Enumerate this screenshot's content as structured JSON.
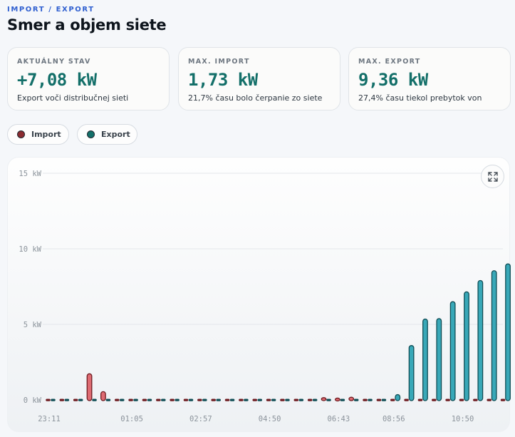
{
  "header": {
    "eyebrow": "IMPORT / EXPORT",
    "title": "Smer a objem siete"
  },
  "cards": [
    {
      "label": "AKTUÁLNY STAV",
      "value": "+7,08 kW",
      "desc": "Export voči distribučnej sieti"
    },
    {
      "label": "MAX. IMPORT",
      "value": "1,73 kW",
      "desc": "21,7% času bolo čerpanie zo siete"
    },
    {
      "label": "MAX. EXPORT",
      "value": "9,36 kW",
      "desc": "27,4% času tiekol prebytok von"
    }
  ],
  "legend": {
    "import_label": "Import",
    "export_label": "Export"
  },
  "icons": {
    "expand": "expand-icon"
  },
  "colors": {
    "import_fill": "#de6b72",
    "import_stroke": "#6e1b20",
    "export_fill": "#38a8b8",
    "export_stroke": "#0f4d55",
    "accent": "#136f69",
    "eyebrow": "#2f5fd0"
  },
  "chart_data": {
    "type": "bar",
    "ylim": [
      0,
      15
    ],
    "unit": "kW",
    "yticks": [
      "15 kW",
      "10 kW",
      "5 kW",
      "0 kW"
    ],
    "ytick_values": [
      15,
      10,
      5,
      0
    ],
    "xtick_labels": [
      "23:11",
      "01:05",
      "02:57",
      "04:50",
      "06:43",
      "08:56",
      "10:50"
    ],
    "xtick_slots": [
      0,
      6,
      11,
      16,
      21,
      25,
      30
    ],
    "series": [
      {
        "name": "Import",
        "values": [
          0,
          0,
          0,
          1.73,
          0.55,
          0,
          0,
          0,
          0,
          0,
          0,
          0,
          0,
          0,
          0,
          0,
          0,
          0,
          0,
          0,
          0.15,
          0.12,
          0.18,
          0,
          0,
          0,
          0,
          0,
          0,
          0,
          0,
          0,
          0,
          0
        ]
      },
      {
        "name": "Export",
        "values": [
          0,
          0,
          0,
          0,
          0,
          0,
          0,
          0,
          0,
          0,
          0,
          0,
          0,
          0,
          0,
          0,
          0,
          0,
          0,
          0,
          0,
          0,
          0,
          0,
          0,
          0.35,
          3.6,
          5.35,
          5.38,
          6.5,
          7.15,
          7.9,
          8.55,
          9.0
        ]
      }
    ],
    "grid": true
  }
}
